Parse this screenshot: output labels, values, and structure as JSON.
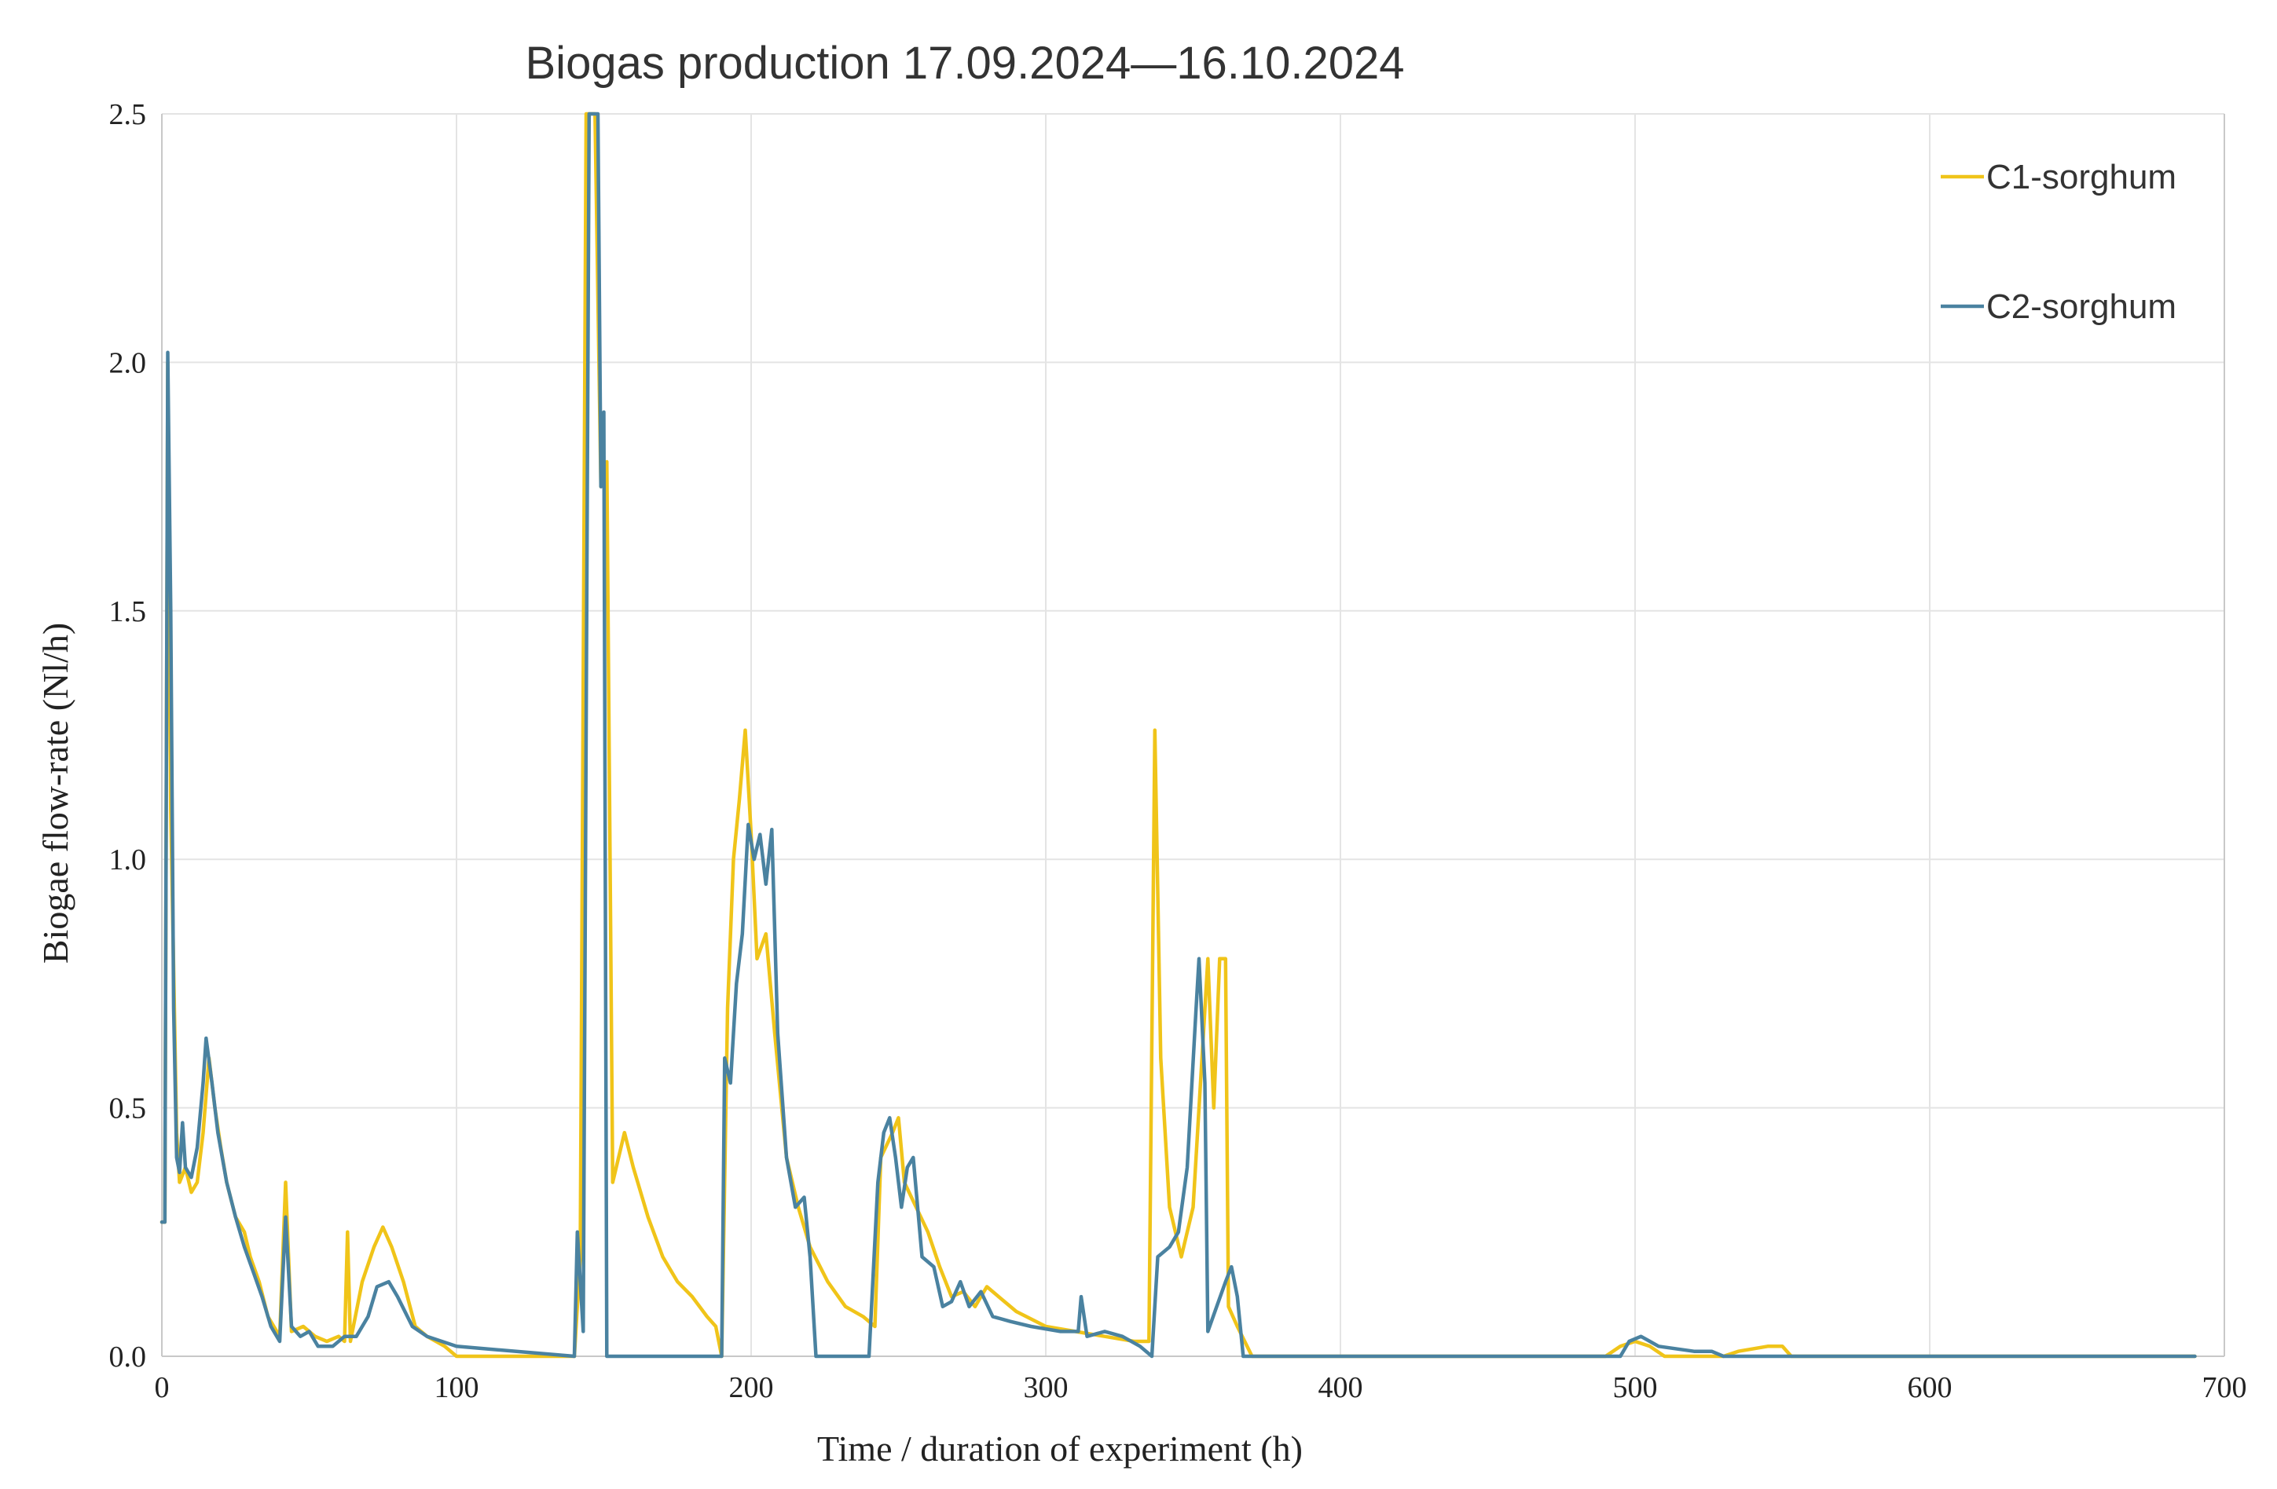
{
  "chart_data": {
    "type": "line",
    "title": "Biogas production 17.09.2024—16.10.2024",
    "xlabel": "Time / duration of experiment (h)",
    "ylabel": "Biogae flow-rate (Nl/h)",
    "xlim": [
      0,
      700
    ],
    "ylim": [
      0,
      2.5
    ],
    "xticks": [
      "0",
      "100",
      "200",
      "300",
      "400",
      "500",
      "600",
      "700"
    ],
    "yticks": [
      "0.0",
      "0.5",
      "1.0",
      "1.5",
      "2.0",
      "2.5"
    ],
    "grid": true,
    "legend_position": "top-right",
    "series": [
      {
        "name": "C1-sorghum",
        "color": "#f0c419",
        "points": [
          [
            0,
            0.27
          ],
          [
            1,
            0.27
          ],
          [
            2,
            2.0
          ],
          [
            3,
            1.1
          ],
          [
            5,
            0.45
          ],
          [
            6,
            0.35
          ],
          [
            8,
            0.38
          ],
          [
            10,
            0.33
          ],
          [
            12,
            0.35
          ],
          [
            14,
            0.45
          ],
          [
            16,
            0.6
          ],
          [
            18,
            0.5
          ],
          [
            20,
            0.42
          ],
          [
            22,
            0.35
          ],
          [
            25,
            0.28
          ],
          [
            28,
            0.25
          ],
          [
            30,
            0.2
          ],
          [
            33,
            0.15
          ],
          [
            36,
            0.08
          ],
          [
            40,
            0.04
          ],
          [
            42,
            0.35
          ],
          [
            44,
            0.05
          ],
          [
            48,
            0.06
          ],
          [
            52,
            0.04
          ],
          [
            56,
            0.03
          ],
          [
            60,
            0.04
          ],
          [
            62,
            0.03
          ],
          [
            63,
            0.25
          ],
          [
            64,
            0.03
          ],
          [
            68,
            0.15
          ],
          [
            72,
            0.22
          ],
          [
            75,
            0.26
          ],
          [
            78,
            0.22
          ],
          [
            82,
            0.15
          ],
          [
            86,
            0.06
          ],
          [
            90,
            0.04
          ],
          [
            96,
            0.02
          ],
          [
            100,
            0.0
          ],
          [
            140,
            0.0
          ],
          [
            142,
            0.2
          ],
          [
            144,
            2.5
          ],
          [
            147,
            2.5
          ],
          [
            149,
            1.75
          ],
          [
            151,
            1.8
          ],
          [
            153,
            0.35
          ],
          [
            157,
            0.45
          ],
          [
            160,
            0.38
          ],
          [
            165,
            0.28
          ],
          [
            170,
            0.2
          ],
          [
            175,
            0.15
          ],
          [
            180,
            0.12
          ],
          [
            185,
            0.08
          ],
          [
            188,
            0.06
          ],
          [
            190,
            0.0
          ],
          [
            192,
            0.7
          ],
          [
            194,
            1.0
          ],
          [
            196,
            1.12
          ],
          [
            198,
            1.26
          ],
          [
            200,
            1.05
          ],
          [
            202,
            0.8
          ],
          [
            205,
            0.85
          ],
          [
            208,
            0.65
          ],
          [
            212,
            0.4
          ],
          [
            216,
            0.3
          ],
          [
            220,
            0.22
          ],
          [
            226,
            0.15
          ],
          [
            232,
            0.1
          ],
          [
            238,
            0.08
          ],
          [
            242,
            0.06
          ],
          [
            244,
            0.4
          ],
          [
            248,
            0.45
          ],
          [
            250,
            0.48
          ],
          [
            252,
            0.35
          ],
          [
            256,
            0.3
          ],
          [
            260,
            0.25
          ],
          [
            264,
            0.18
          ],
          [
            268,
            0.12
          ],
          [
            272,
            0.13
          ],
          [
            276,
            0.1
          ],
          [
            280,
            0.14
          ],
          [
            284,
            0.12
          ],
          [
            290,
            0.09
          ],
          [
            300,
            0.06
          ],
          [
            310,
            0.05
          ],
          [
            320,
            0.04
          ],
          [
            330,
            0.03
          ],
          [
            335,
            0.03
          ],
          [
            337,
            1.26
          ],
          [
            339,
            0.6
          ],
          [
            342,
            0.3
          ],
          [
            346,
            0.2
          ],
          [
            350,
            0.3
          ],
          [
            353,
            0.6
          ],
          [
            355,
            0.8
          ],
          [
            357,
            0.5
          ],
          [
            359,
            0.8
          ],
          [
            361,
            0.8
          ],
          [
            362,
            0.1
          ],
          [
            365,
            0.06
          ],
          [
            370,
            0.0
          ],
          [
            490,
            0.0
          ],
          [
            495,
            0.02
          ],
          [
            500,
            0.03
          ],
          [
            505,
            0.02
          ],
          [
            510,
            0.0
          ],
          [
            530,
            0.0
          ],
          [
            535,
            0.01
          ],
          [
            545,
            0.02
          ],
          [
            550,
            0.02
          ],
          [
            553,
            0.0
          ],
          [
            690,
            0.0
          ]
        ]
      },
      {
        "name": "C2-sorghum",
        "color": "#4a82a0",
        "points": [
          [
            0,
            0.27
          ],
          [
            1,
            0.27
          ],
          [
            2,
            2.02
          ],
          [
            3,
            1.5
          ],
          [
            4,
            0.7
          ],
          [
            5,
            0.4
          ],
          [
            6,
            0.37
          ],
          [
            7,
            0.47
          ],
          [
            8,
            0.38
          ],
          [
            10,
            0.36
          ],
          [
            12,
            0.42
          ],
          [
            14,
            0.55
          ],
          [
            15,
            0.64
          ],
          [
            17,
            0.55
          ],
          [
            19,
            0.45
          ],
          [
            22,
            0.35
          ],
          [
            25,
            0.28
          ],
          [
            28,
            0.22
          ],
          [
            31,
            0.17
          ],
          [
            34,
            0.12
          ],
          [
            37,
            0.06
          ],
          [
            40,
            0.03
          ],
          [
            42,
            0.28
          ],
          [
            44,
            0.06
          ],
          [
            47,
            0.04
          ],
          [
            50,
            0.05
          ],
          [
            53,
            0.02
          ],
          [
            58,
            0.02
          ],
          [
            62,
            0.04
          ],
          [
            66,
            0.04
          ],
          [
            70,
            0.08
          ],
          [
            73,
            0.14
          ],
          [
            77,
            0.15
          ],
          [
            80,
            0.12
          ],
          [
            85,
            0.06
          ],
          [
            90,
            0.04
          ],
          [
            95,
            0.03
          ],
          [
            100,
            0.02
          ],
          [
            140,
            0.0
          ],
          [
            141,
            0.25
          ],
          [
            143,
            0.05
          ],
          [
            145,
            2.5
          ],
          [
            148,
            2.5
          ],
          [
            149,
            1.75
          ],
          [
            150,
            1.9
          ],
          [
            151,
            0.0
          ],
          [
            190,
            0.0
          ],
          [
            191,
            0.6
          ],
          [
            193,
            0.55
          ],
          [
            195,
            0.75
          ],
          [
            197,
            0.85
          ],
          [
            199,
            1.07
          ],
          [
            201,
            1.0
          ],
          [
            203,
            1.05
          ],
          [
            205,
            0.95
          ],
          [
            207,
            1.06
          ],
          [
            209,
            0.65
          ],
          [
            212,
            0.4
          ],
          [
            215,
            0.3
          ],
          [
            218,
            0.32
          ],
          [
            220,
            0.2
          ],
          [
            222,
            0.0
          ],
          [
            240,
            0.0
          ],
          [
            243,
            0.35
          ],
          [
            245,
            0.45
          ],
          [
            247,
            0.48
          ],
          [
            249,
            0.4
          ],
          [
            251,
            0.3
          ],
          [
            253,
            0.38
          ],
          [
            255,
            0.4
          ],
          [
            258,
            0.2
          ],
          [
            262,
            0.18
          ],
          [
            265,
            0.1
          ],
          [
            268,
            0.11
          ],
          [
            271,
            0.15
          ],
          [
            274,
            0.1
          ],
          [
            278,
            0.13
          ],
          [
            282,
            0.08
          ],
          [
            288,
            0.07
          ],
          [
            295,
            0.06
          ],
          [
            305,
            0.05
          ],
          [
            311,
            0.05
          ],
          [
            312,
            0.12
          ],
          [
            314,
            0.04
          ],
          [
            320,
            0.05
          ],
          [
            326,
            0.04
          ],
          [
            332,
            0.02
          ],
          [
            336,
            0.0
          ],
          [
            338,
            0.2
          ],
          [
            342,
            0.22
          ],
          [
            345,
            0.25
          ],
          [
            348,
            0.38
          ],
          [
            351,
            0.7
          ],
          [
            352,
            0.8
          ],
          [
            354,
            0.55
          ],
          [
            355,
            0.05
          ],
          [
            358,
            0.1
          ],
          [
            361,
            0.15
          ],
          [
            363,
            0.18
          ],
          [
            365,
            0.12
          ],
          [
            367,
            0.0
          ],
          [
            495,
            0.0
          ],
          [
            498,
            0.03
          ],
          [
            502,
            0.04
          ],
          [
            505,
            0.03
          ],
          [
            508,
            0.02
          ],
          [
            520,
            0.01
          ],
          [
            526,
            0.01
          ],
          [
            530,
            0.0
          ],
          [
            690,
            0.0
          ]
        ]
      }
    ]
  }
}
